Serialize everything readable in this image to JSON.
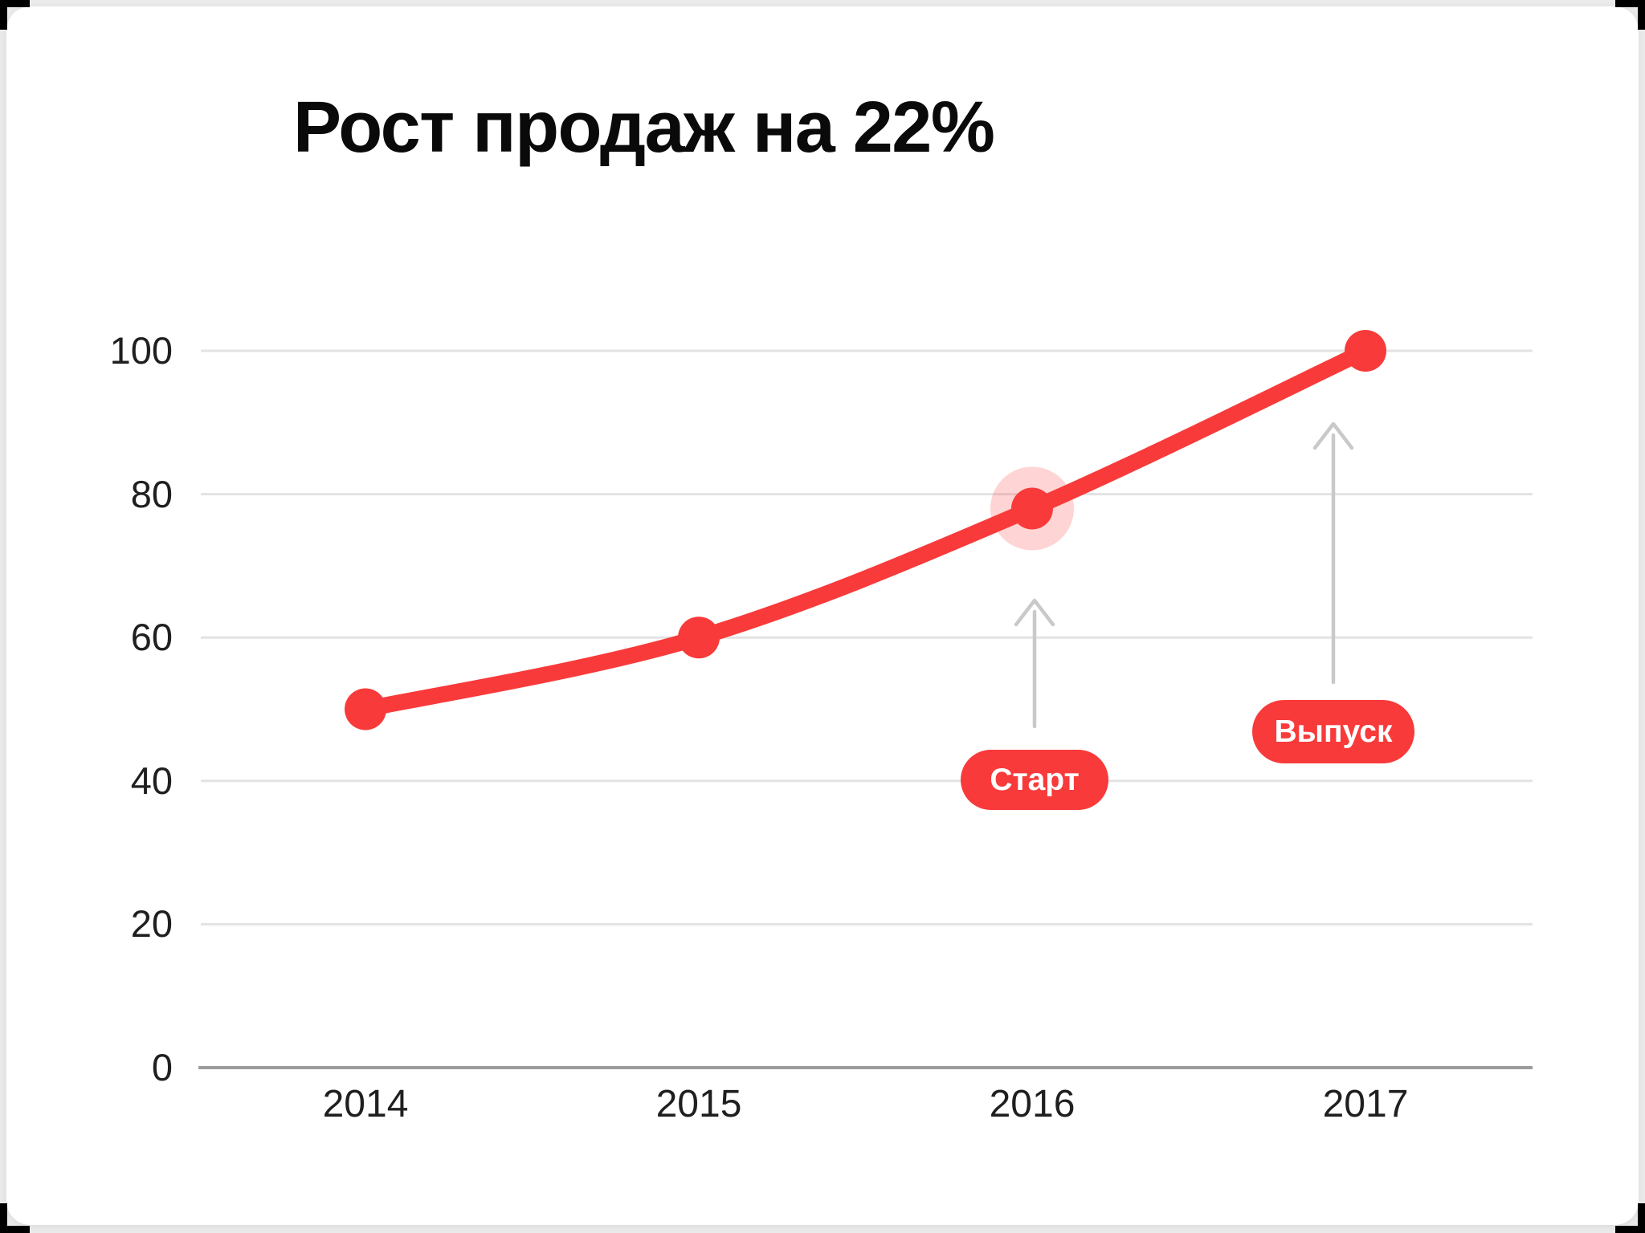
{
  "title": "Рост продаж на 22%",
  "chart_data": {
    "type": "line",
    "title": "Рост продаж на 22%",
    "categories": [
      "2014",
      "2015",
      "2016",
      "2017"
    ],
    "values": [
      50,
      60,
      78,
      100
    ],
    "ylim": [
      0,
      100
    ],
    "yticks": [
      0,
      20,
      40,
      60,
      80,
      100
    ],
    "ytick_labels_top_to_bottom": [
      "100",
      "80",
      "60",
      "40",
      "20",
      "0"
    ],
    "grid": true,
    "legend": false,
    "line_color": "#f93a3a",
    "point_color": "#f93a3a",
    "highlight_index": 2,
    "annotations": [
      {
        "label": "Старт",
        "points_to_category": "2016"
      },
      {
        "label": "Выпуск",
        "points_to_category": "2017"
      }
    ]
  },
  "colors": {
    "accent_red": "#f93a3a",
    "halo_pink": "rgba(249,58,58,0.22)",
    "grid_line": "#e3e3e3",
    "axis_line": "#9c9c9c",
    "arrow_gray": "#c9c9c9",
    "page_bg": "#ebebeb",
    "card_bg": "#ffffff",
    "text": "#1f1f1f"
  }
}
